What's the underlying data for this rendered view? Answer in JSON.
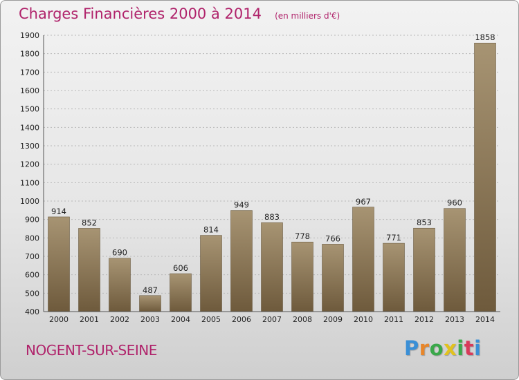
{
  "chart_data": {
    "type": "bar",
    "title": "Charges Financières 2000 à 2014",
    "subtitle": "(en milliers d'€)",
    "categories": [
      "2000",
      "2001",
      "2002",
      "2003",
      "2004",
      "2005",
      "2006",
      "2007",
      "2008",
      "2009",
      "2010",
      "2011",
      "2012",
      "2013",
      "2014"
    ],
    "values": [
      914,
      852,
      690,
      487,
      606,
      814,
      949,
      883,
      778,
      766,
      967,
      771,
      853,
      960,
      1858
    ],
    "ylim": [
      400,
      1900
    ],
    "yticks": [
      400,
      500,
      600,
      700,
      800,
      900,
      1000,
      1100,
      1200,
      1300,
      1400,
      1500,
      1600,
      1700,
      1800,
      1900
    ],
    "grid": true,
    "bar_color_top": "#a79473",
    "bar_color_bottom": "#6e5a3c"
  },
  "commune": "NOGENT-SUR-SEINE",
  "logo": {
    "letters": [
      "P",
      "r",
      "o",
      "x",
      "i",
      "t",
      "i"
    ],
    "colors": [
      "#3a8fd6",
      "#e8862a",
      "#3aa84a",
      "#e2c21e",
      "#3aa84a",
      "#d83a5a",
      "#3a8fd6"
    ]
  }
}
